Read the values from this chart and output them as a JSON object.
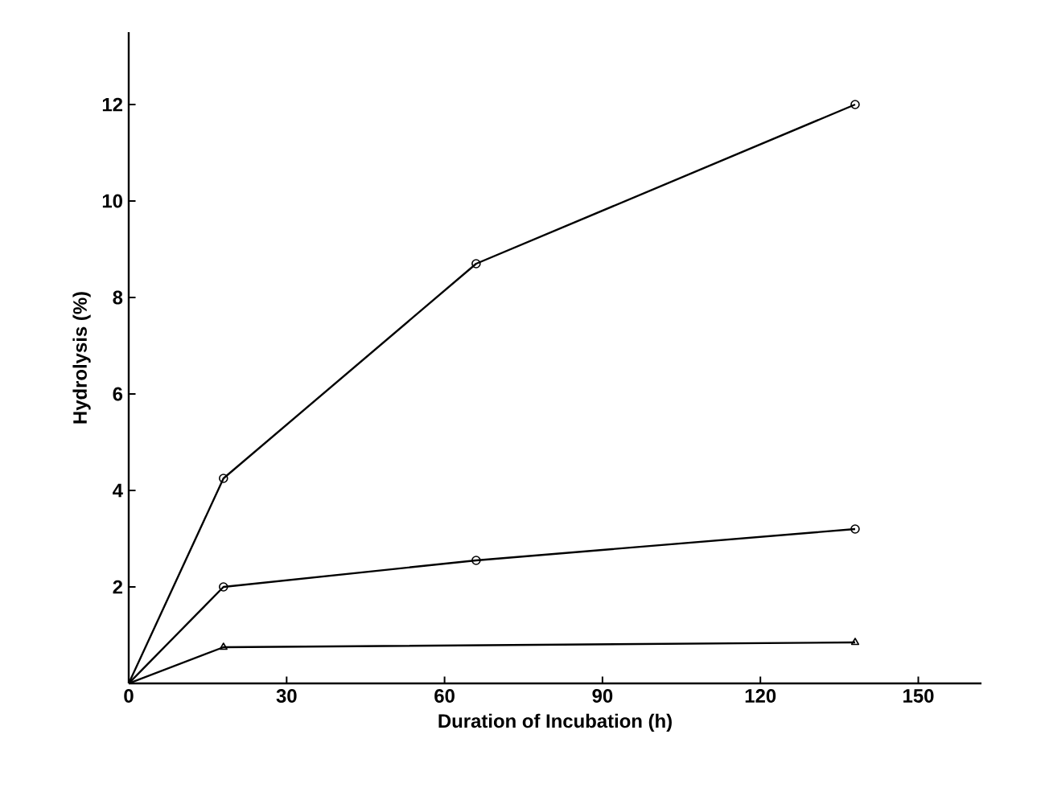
{
  "chart_data": {
    "type": "line",
    "xlabel": "Duration of Incubation (h)",
    "ylabel": "Hydrolysis  (%)",
    "xlim": [
      0,
      162
    ],
    "ylim": [
      0,
      13.5
    ],
    "xticks": [
      0,
      30,
      60,
      90,
      120,
      150
    ],
    "yticks": [
      2,
      4,
      6,
      8,
      10,
      12
    ],
    "grid": false,
    "line_style": "solid",
    "series": [
      {
        "color": "#000000",
        "marker": "circle",
        "x": [
          0,
          18,
          66,
          138
        ],
        "values": [
          0,
          4.25,
          8.7,
          12.0
        ]
      },
      {
        "color": "#000000",
        "marker": "circle",
        "x": [
          0,
          18,
          66,
          138
        ],
        "values": [
          0,
          2.0,
          2.55,
          3.2
        ]
      },
      {
        "color": "#000000",
        "marker": "triangle",
        "x": [
          0,
          18,
          138
        ],
        "values": [
          0,
          0.75,
          0.85
        ]
      }
    ]
  }
}
